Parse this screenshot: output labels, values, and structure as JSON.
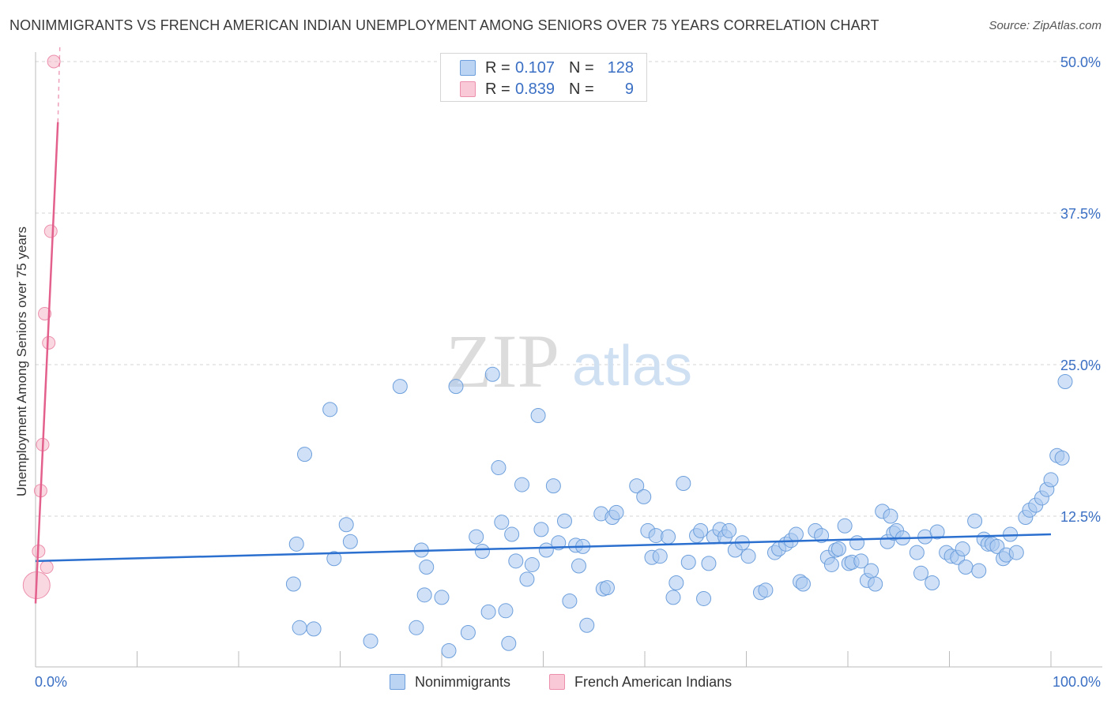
{
  "header": {
    "title": "NONIMMIGRANTS VS FRENCH AMERICAN INDIAN UNEMPLOYMENT AMONG SENIORS OVER 75 YEARS CORRELATION CHART",
    "source": "Source: ZipAtlas.com"
  },
  "watermark": {
    "zip": "ZIP",
    "atlas": "atlas"
  },
  "legend": {
    "rows": [
      {
        "r_label": "R =",
        "r_value": "0.107",
        "n_label": "N =",
        "n_value": "128",
        "color": "#a9c8f0"
      },
      {
        "r_label": "R =",
        "r_value": "0.839",
        "n_label": "N =",
        "n_value": "9",
        "color": "#f6b8cb"
      }
    ]
  },
  "chart_data": {
    "type": "scatter",
    "title": "NONIMMIGRANTS VS FRENCH AMERICAN INDIAN UNEMPLOYMENT AMONG SENIORS OVER 75 YEARS CORRELATION CHART",
    "xlabel": "",
    "ylabel": "Unemployment Among Seniors over 75 years",
    "xlim": [
      0,
      100
    ],
    "ylim": [
      0,
      52
    ],
    "x_tick_labels": [
      "0.0%",
      "100.0%"
    ],
    "y_ticks": [
      12.5,
      25.0,
      37.5,
      50.0
    ],
    "y_tick_labels": [
      "12.5%",
      "25.0%",
      "37.5%",
      "50.0%"
    ],
    "grid": true,
    "series": [
      {
        "name": "Nonimmigrants",
        "color": "#a9c8f0",
        "stroke": "#6d9fdc",
        "trendline": {
          "x": [
            0,
            100
          ],
          "y": [
            8.8,
            11.0
          ],
          "color": "#2b6fcf"
        },
        "points": [
          [
            25.4,
            6.9
          ],
          [
            25.7,
            10.2
          ],
          [
            26.0,
            3.3
          ],
          [
            26.5,
            17.6
          ],
          [
            27.4,
            3.2
          ],
          [
            29.0,
            21.3
          ],
          [
            29.4,
            9.0
          ],
          [
            30.6,
            11.8
          ],
          [
            31.0,
            10.4
          ],
          [
            33.0,
            2.2
          ],
          [
            35.9,
            23.2
          ],
          [
            37.5,
            3.3
          ],
          [
            38.0,
            9.7
          ],
          [
            38.3,
            6.0
          ],
          [
            38.5,
            8.3
          ],
          [
            40.0,
            5.8
          ],
          [
            40.7,
            1.4
          ],
          [
            41.4,
            23.2
          ],
          [
            42.6,
            2.9
          ],
          [
            43.4,
            10.8
          ],
          [
            44.0,
            9.6
          ],
          [
            44.6,
            4.6
          ],
          [
            45.0,
            24.2
          ],
          [
            45.6,
            16.5
          ],
          [
            45.9,
            12.0
          ],
          [
            46.3,
            4.7
          ],
          [
            46.6,
            2.0
          ],
          [
            46.9,
            11.0
          ],
          [
            47.3,
            8.8
          ],
          [
            47.9,
            15.1
          ],
          [
            48.4,
            7.3
          ],
          [
            48.9,
            8.5
          ],
          [
            49.5,
            20.8
          ],
          [
            49.8,
            11.4
          ],
          [
            50.3,
            9.7
          ],
          [
            51.0,
            15.0
          ],
          [
            51.5,
            10.3
          ],
          [
            52.1,
            12.1
          ],
          [
            52.6,
            5.5
          ],
          [
            53.2,
            10.1
          ],
          [
            53.5,
            8.4
          ],
          [
            53.9,
            10.0
          ],
          [
            54.3,
            3.5
          ],
          [
            55.7,
            12.7
          ],
          [
            55.9,
            6.5
          ],
          [
            56.3,
            6.6
          ],
          [
            56.8,
            12.4
          ],
          [
            57.2,
            12.8
          ],
          [
            59.2,
            15.0
          ],
          [
            59.9,
            14.1
          ],
          [
            60.3,
            11.3
          ],
          [
            60.7,
            9.1
          ],
          [
            61.1,
            10.9
          ],
          [
            61.5,
            9.2
          ],
          [
            62.3,
            10.8
          ],
          [
            62.8,
            5.8
          ],
          [
            63.1,
            7.0
          ],
          [
            63.8,
            15.2
          ],
          [
            64.3,
            8.7
          ],
          [
            65.1,
            10.9
          ],
          [
            65.5,
            11.3
          ],
          [
            65.8,
            5.7
          ],
          [
            66.3,
            8.6
          ],
          [
            66.8,
            10.8
          ],
          [
            67.4,
            11.4
          ],
          [
            67.9,
            10.8
          ],
          [
            68.3,
            11.3
          ],
          [
            68.9,
            9.7
          ],
          [
            69.6,
            10.3
          ],
          [
            70.2,
            9.2
          ],
          [
            71.4,
            6.2
          ],
          [
            71.9,
            6.4
          ],
          [
            72.8,
            9.5
          ],
          [
            73.2,
            9.8
          ],
          [
            73.9,
            10.2
          ],
          [
            74.4,
            10.5
          ],
          [
            74.9,
            11.0
          ],
          [
            75.3,
            7.1
          ],
          [
            75.6,
            6.9
          ],
          [
            76.8,
            11.3
          ],
          [
            77.4,
            10.9
          ],
          [
            78.0,
            9.1
          ],
          [
            78.4,
            8.5
          ],
          [
            78.8,
            9.7
          ],
          [
            79.1,
            9.8
          ],
          [
            79.7,
            11.7
          ],
          [
            80.1,
            8.6
          ],
          [
            80.4,
            8.7
          ],
          [
            80.9,
            10.3
          ],
          [
            81.3,
            8.8
          ],
          [
            81.9,
            7.2
          ],
          [
            82.3,
            8.0
          ],
          [
            82.7,
            6.9
          ],
          [
            83.4,
            12.9
          ],
          [
            83.9,
            10.4
          ],
          [
            84.2,
            12.5
          ],
          [
            84.5,
            11.1
          ],
          [
            84.8,
            11.3
          ],
          [
            85.4,
            10.7
          ],
          [
            86.8,
            9.5
          ],
          [
            87.2,
            7.8
          ],
          [
            87.6,
            10.8
          ],
          [
            88.3,
            7.0
          ],
          [
            88.8,
            11.2
          ],
          [
            89.7,
            9.5
          ],
          [
            90.2,
            9.2
          ],
          [
            90.8,
            9.1
          ],
          [
            91.3,
            9.8
          ],
          [
            91.6,
            8.3
          ],
          [
            92.5,
            12.1
          ],
          [
            92.9,
            8.0
          ],
          [
            93.4,
            10.6
          ],
          [
            93.8,
            10.2
          ],
          [
            94.2,
            10.2
          ],
          [
            94.7,
            10.0
          ],
          [
            95.3,
            9.0
          ],
          [
            95.6,
            9.3
          ],
          [
            96.0,
            11.0
          ],
          [
            96.6,
            9.5
          ],
          [
            97.5,
            12.4
          ],
          [
            97.9,
            13.0
          ],
          [
            98.5,
            13.4
          ],
          [
            99.1,
            14.0
          ],
          [
            99.6,
            14.7
          ],
          [
            100.0,
            15.5
          ],
          [
            100.6,
            17.5
          ],
          [
            101.1,
            17.3
          ],
          [
            101.4,
            23.6
          ]
        ]
      },
      {
        "name": "French American Indians",
        "color": "#f6b8cb",
        "stroke": "#ec8fac",
        "trendline": {
          "x": [
            0,
            2.2
          ],
          "y": [
            5.3,
            45.0
          ],
          "dashed_to": [
            2.4,
            51.5
          ],
          "color": "#e3608c"
        },
        "points": [
          [
            1.8,
            50.0
          ],
          [
            1.5,
            36.0
          ],
          [
            0.9,
            29.2
          ],
          [
            1.3,
            26.8
          ],
          [
            0.7,
            18.4
          ],
          [
            0.5,
            14.6
          ],
          [
            0.3,
            9.6
          ],
          [
            1.1,
            8.3
          ],
          [
            0.1,
            6.8
          ]
        ]
      }
    ]
  },
  "bottom_legend": {
    "items": [
      {
        "label": "Nonimmigrants",
        "color": "#a9c8f0"
      },
      {
        "label": "French American Indians",
        "color": "#f6b8cb"
      }
    ]
  }
}
